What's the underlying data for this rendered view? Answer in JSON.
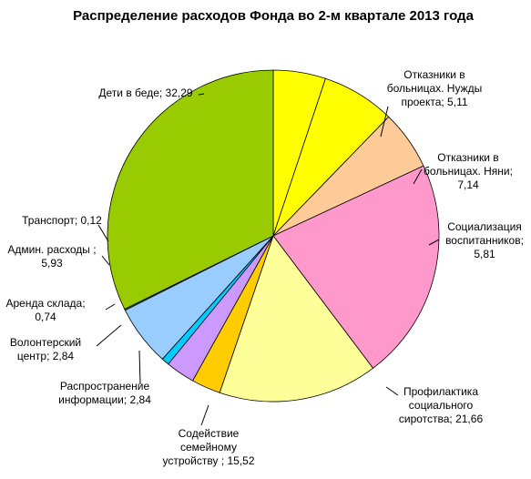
{
  "chart_data": {
    "type": "pie",
    "title": "Распределение расходов Фонда во 2-м квартале 2013 года",
    "start_angle_deg": 0,
    "direction": "clockwise",
    "slices": [
      {
        "label_lines": [
          "Отказники в",
          "больницах. Нужды",
          "проекта; 5,11"
        ],
        "name": "Отказники в больницах. Нужды проекта",
        "value": 5.11,
        "color": "#ffff00"
      },
      {
        "label_lines": [
          "Отказники в",
          "больницах. Няни;",
          "7,14"
        ],
        "name": "Отказники в больницах. Няни",
        "value": 7.14,
        "color": "#ffff00"
      },
      {
        "label_lines": [
          "Социализация",
          "воспитанников;",
          "5,81"
        ],
        "name": "Социализация воспитанников",
        "value": 5.81,
        "color": "#ffcc99"
      },
      {
        "label_lines": [
          "Профилактика",
          "социального",
          "сиротства; 21,66"
        ],
        "name": "Профилактика социального сиротства",
        "value": 21.66,
        "color": "#ff99cc"
      },
      {
        "label_lines": [
          "Содействие",
          "семейному",
          "устройству ; 15,52"
        ],
        "name": "Содействие семейному устройству",
        "value": 15.52,
        "color": "#ffff99"
      },
      {
        "label_lines": [
          "Распространение",
          "информации; 2,84"
        ],
        "name": "Распространение информации",
        "value": 2.84,
        "color": "#ffcc00"
      },
      {
        "label_lines": [
          "Волонтерский",
          "центр; 2,84"
        ],
        "name": "Волонтерский центр",
        "value": 2.84,
        "color": "#cc99ff"
      },
      {
        "label_lines": [
          "Аренда склада;",
          "0,74"
        ],
        "name": "Аренда склада",
        "value": 0.74,
        "color": "#00ccff"
      },
      {
        "label_lines": [
          "Админ. расходы ;",
          "5,93"
        ],
        "name": "Админ. расходы",
        "value": 5.93,
        "color": "#99ccff"
      },
      {
        "label_lines": [
          "Транспорт; 0,12"
        ],
        "name": "Транспорт",
        "value": 0.12,
        "color": "#339966"
      },
      {
        "label_lines": [
          "Дети в беде; 32,29"
        ],
        "name": "Дети в беде",
        "value": 32.29,
        "color": "#99cc00"
      }
    ]
  }
}
